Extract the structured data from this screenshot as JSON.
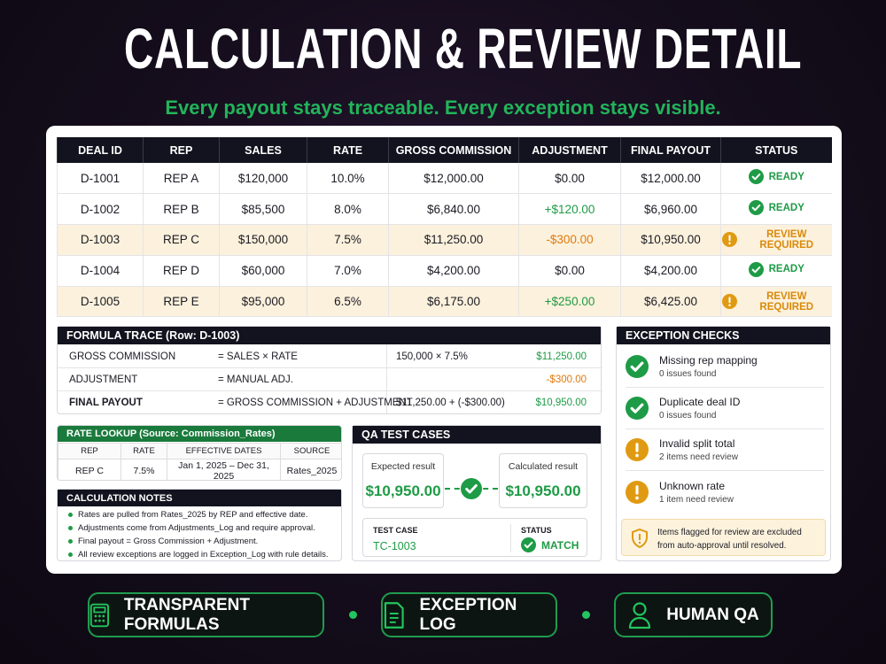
{
  "header": {
    "title": "CALCULATION & REVIEW DETAIL",
    "subtitle": "Every payout stays traceable. Every exception stays visible."
  },
  "main_table": {
    "columns": [
      "DEAL ID",
      "REP",
      "SALES",
      "RATE",
      "GROSS COMMISSION",
      "ADJUSTMENT",
      "FINAL PAYOUT",
      "STATUS"
    ],
    "rows": [
      [
        "D-1001",
        "REP A",
        "$120,000",
        "10.0%",
        "$12,000.00",
        "$0.00",
        "$12,000.00",
        "READY"
      ],
      [
        "D-1002",
        "REP B",
        "$85,500",
        "8.0%",
        "$6,840.00",
        "+$120.00",
        "$6,960.00",
        "READY"
      ],
      [
        "D-1003",
        "REP C",
        "$150,000",
        "7.5%",
        "$11,250.00",
        "-$300.00",
        "$10,950.00",
        "REVIEW REQUIRED"
      ],
      [
        "D-1004",
        "REP D",
        "$60,000",
        "7.0%",
        "$4,200.00",
        "$0.00",
        "$4,200.00",
        "READY"
      ],
      [
        "D-1005",
        "REP E",
        "$95,000",
        "6.5%",
        "$6,175.00",
        "+$250.00",
        "$6,425.00",
        "REVIEW REQUIRED"
      ]
    ]
  },
  "formula_trace": {
    "title": "FORMULA TRACE (Row: D-1003)",
    "rows": [
      [
        "GROSS COMMISSION",
        "= SALES × RATE",
        "150,000 × 7.5%",
        "$11,250.00"
      ],
      [
        "ADJUSTMENT",
        "= MANUAL ADJ.",
        "",
        "-$300.00"
      ],
      [
        "FINAL PAYOUT",
        "= GROSS COMMISSION + ADJUSTMENT",
        "$11,250.00 + (-$300.00)",
        "$10,950.00"
      ]
    ]
  },
  "rate_lookup": {
    "title": "RATE LOOKUP (Source: Commission_Rates)",
    "columns": [
      "REP",
      "RATE",
      "EFFECTIVE DATES",
      "SOURCE"
    ],
    "rows": [
      [
        "REP C",
        "7.5%",
        "Jan 1, 2025 – Dec 31, 2025",
        "Rates_2025"
      ]
    ]
  },
  "calculation_notes": {
    "title": "CALCULATION NOTES",
    "items": [
      "Rates are pulled from Rates_2025 by REP and effective date.",
      "Adjustments come from Adjustments_Log and require approval.",
      "Final payout = Gross Commission + Adjustment.",
      "All review exceptions are logged in Exception_Log with rule details."
    ]
  },
  "qa_test_cases": {
    "title": "QA TEST CASES",
    "expected_label": "Expected result",
    "expected": "$10,950.00",
    "calculated_label": "Calculated result",
    "calculated": "$10,950.00",
    "test_case_label": "TEST CASE",
    "test_case": "TC-1003",
    "status_label": "STATUS",
    "status": "MATCH"
  },
  "exception_checks": {
    "title": "EXCEPTION CHECKS",
    "items": [
      {
        "label": "Missing rep mapping",
        "detail": "0 issues found"
      },
      {
        "label": "Duplicate deal ID",
        "detail": "0 issues found"
      },
      {
        "label": "Invalid split total",
        "detail": "2 items need review"
      },
      {
        "label": "Unknown rate",
        "detail": "1 item need review"
      }
    ],
    "note": "Items flagged for review are excluded from auto-approval until resolved."
  },
  "footer": {
    "items": [
      "TRANSPARENT FORMULAS",
      "EXCEPTION LOG",
      "HUMAN QA"
    ]
  }
}
